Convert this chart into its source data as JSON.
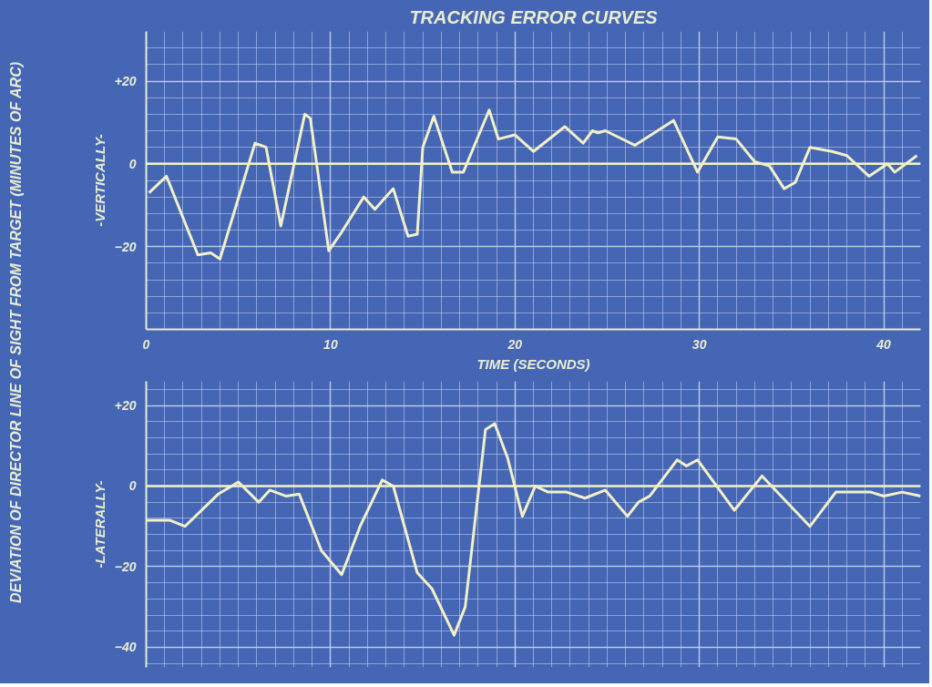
{
  "chart_data": [
    {
      "type": "line",
      "title": "TRACKING ERROR CURVES",
      "xlabel": "TIME (SECONDS)",
      "ylabel": "-VERTICALLY-",
      "annotations": [
        "DEVIATION OF DIRECTOR LINE OF SIGHT FROM TARGET (MINUTES OF ARC)"
      ],
      "x": [
        0.15,
        1.1,
        2.8,
        3.5,
        4.0,
        5.9,
        6.5,
        7.3,
        8.6,
        8.9,
        9.9,
        10.6,
        11.8,
        12.4,
        13.4,
        14.2,
        14.7,
        15.0,
        15.6,
        16.6,
        17.2,
        18.6,
        19.1,
        20.0,
        21.0,
        22.7,
        23.7,
        24.2,
        24.5,
        24.9,
        26.5,
        28.6,
        29.9,
        31.0,
        32.0,
        33.0,
        33.8,
        34.6,
        35.2,
        36.0,
        37.2,
        38.0,
        39.2,
        40.2,
        40.6,
        41.8
      ],
      "series": [
        {
          "color": "#f2f0c8",
          "values": [
            -7,
            -3,
            -22,
            -21.5,
            -23,
            5,
            4,
            -15,
            12,
            11,
            -21,
            -16.5,
            -8,
            -11,
            -6,
            -17.5,
            -17,
            4,
            11.5,
            -2,
            -2,
            13,
            6,
            7,
            3,
            9,
            5,
            8,
            7.5,
            8,
            4.5,
            10.5,
            -2,
            6.5,
            6,
            0.5,
            -0.5,
            -6,
            -4.5,
            4,
            3,
            2,
            -3,
            0,
            -2,
            2
          ]
        }
      ],
      "xlim": [
        0,
        42
      ],
      "ylim": [
        -40,
        32
      ],
      "xticks": [
        0,
        10,
        20,
        30,
        40
      ],
      "yticks": [
        {
          "value": 20,
          "label": "+20"
        },
        0,
        -20
      ],
      "ref_lines": [
        {
          "axis": "y",
          "value": 0,
          "color": "#f2f0c8"
        }
      ],
      "grid": true,
      "marker": "none",
      "line_style": "solid"
    },
    {
      "type": "line",
      "ylabel": "-LATERALLY-",
      "x": [
        0,
        1.3,
        2.1,
        3.9,
        5.0,
        6.1,
        6.7,
        7.6,
        8.3,
        9.5,
        10.6,
        11.6,
        12.8,
        13.4,
        14.7,
        15.5,
        16.7,
        17.3,
        18.4,
        18.9,
        19.6,
        20.4,
        21.1,
        21.8,
        22.8,
        23.8,
        24.9,
        26.1,
        26.7,
        27.3,
        28.8,
        29.3,
        29.9,
        31.9,
        33.4,
        36.0,
        37.4,
        39.3,
        40.0,
        41.0,
        42.0
      ],
      "series": [
        {
          "color": "#f2f0c8",
          "values": [
            -8.5,
            -8.5,
            -10,
            -2,
            1,
            -4,
            -1,
            -2.5,
            -2,
            -16,
            -22,
            -10,
            1.5,
            0,
            -21.5,
            -25.5,
            -37,
            -30,
            14,
            15.5,
            7,
            -7.5,
            0,
            -1.5,
            -1.5,
            -3,
            -1,
            -7.5,
            -4,
            -2.5,
            6.5,
            5,
            6.5,
            -6,
            2.5,
            -10,
            -1.5,
            -1.5,
            -2.5,
            -1.5,
            -2.5
          ]
        }
      ],
      "xlim": [
        0,
        42
      ],
      "ylim": [
        -45,
        26
      ],
      "xticks": [
        0,
        10,
        20,
        30,
        40
      ],
      "yticks": [
        {
          "value": 20,
          "label": "+20"
        },
        0,
        -20,
        -40
      ],
      "ref_lines": [
        {
          "axis": "y",
          "value": 0,
          "color": "#f2f0c8"
        }
      ],
      "tick_labels": "y",
      "grid": true,
      "marker": "none",
      "line_style": "solid"
    }
  ]
}
